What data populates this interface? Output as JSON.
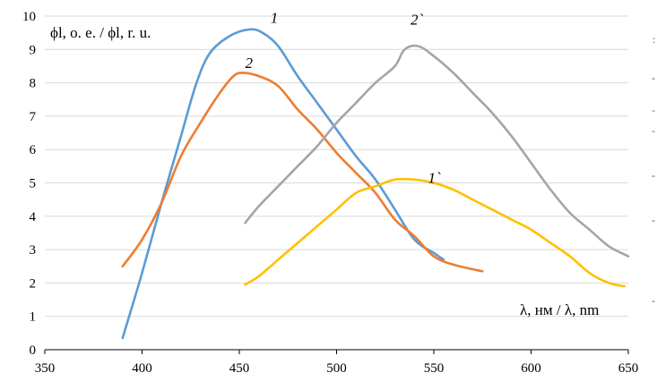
{
  "chart_data": {
    "type": "line",
    "xlabel": "λ, нм / λ, nm",
    "ylabel": "ϕl, o. e. / ϕl, r. u.",
    "xlim": [
      350,
      650
    ],
    "ylim": [
      0,
      10
    ],
    "x_ticks": [
      "350",
      "400",
      "450",
      "500",
      "550",
      "600",
      "650"
    ],
    "y_ticks": [
      "0",
      "1",
      "2",
      "3",
      "4",
      "5",
      "6",
      "7",
      "8",
      "9",
      "10"
    ],
    "grid": "horizontal",
    "series": [
      {
        "name": "1",
        "color": "#5b9bd5",
        "points": [
          [
            390,
            0.35
          ],
          [
            400,
            2.3
          ],
          [
            410,
            4.4
          ],
          [
            420,
            6.4
          ],
          [
            428,
            8.0
          ],
          [
            435,
            8.9
          ],
          [
            445,
            9.4
          ],
          [
            455,
            9.6
          ],
          [
            462,
            9.5
          ],
          [
            470,
            9.1
          ],
          [
            480,
            8.2
          ],
          [
            490,
            7.4
          ],
          [
            500,
            6.6
          ],
          [
            510,
            5.8
          ],
          [
            520,
            5.1
          ],
          [
            530,
            4.2
          ],
          [
            540,
            3.3
          ],
          [
            550,
            2.9
          ],
          [
            555,
            2.7
          ]
        ]
      },
      {
        "name": "2",
        "color": "#ed7d31",
        "points": [
          [
            390,
            2.5
          ],
          [
            400,
            3.3
          ],
          [
            410,
            4.4
          ],
          [
            420,
            5.8
          ],
          [
            430,
            6.8
          ],
          [
            440,
            7.7
          ],
          [
            447,
            8.2
          ],
          [
            452,
            8.3
          ],
          [
            460,
            8.2
          ],
          [
            470,
            7.9
          ],
          [
            480,
            7.2
          ],
          [
            490,
            6.6
          ],
          [
            500,
            5.9
          ],
          [
            510,
            5.3
          ],
          [
            520,
            4.7
          ],
          [
            530,
            3.9
          ],
          [
            540,
            3.4
          ],
          [
            550,
            2.8
          ],
          [
            560,
            2.55
          ],
          [
            575,
            2.35
          ]
        ]
      },
      {
        "name": "2`",
        "color": "#a5a5a5",
        "points": [
          [
            453,
            3.8
          ],
          [
            460,
            4.3
          ],
          [
            470,
            4.9
          ],
          [
            480,
            5.5
          ],
          [
            490,
            6.1
          ],
          [
            500,
            6.8
          ],
          [
            510,
            7.4
          ],
          [
            520,
            8.0
          ],
          [
            530,
            8.5
          ],
          [
            535,
            9.0
          ],
          [
            542,
            9.1
          ],
          [
            550,
            8.8
          ],
          [
            560,
            8.3
          ],
          [
            570,
            7.7
          ],
          [
            580,
            7.1
          ],
          [
            590,
            6.4
          ],
          [
            600,
            5.6
          ],
          [
            610,
            4.8
          ],
          [
            620,
            4.1
          ],
          [
            630,
            3.6
          ],
          [
            640,
            3.1
          ],
          [
            650,
            2.8
          ]
        ]
      },
      {
        "name": "1`",
        "color": "#ffc000",
        "points": [
          [
            453,
            1.95
          ],
          [
            460,
            2.2
          ],
          [
            470,
            2.7
          ],
          [
            480,
            3.2
          ],
          [
            490,
            3.7
          ],
          [
            500,
            4.2
          ],
          [
            510,
            4.7
          ],
          [
            520,
            4.9
          ],
          [
            530,
            5.1
          ],
          [
            540,
            5.1
          ],
          [
            550,
            5.0
          ],
          [
            560,
            4.8
          ],
          [
            570,
            4.5
          ],
          [
            580,
            4.2
          ],
          [
            590,
            3.9
          ],
          [
            600,
            3.6
          ],
          [
            610,
            3.2
          ],
          [
            620,
            2.8
          ],
          [
            630,
            2.3
          ],
          [
            640,
            2.0
          ],
          [
            648,
            1.9
          ]
        ]
      }
    ],
    "series_labels": [
      {
        "text": "1",
        "x": 466,
        "y": 9.8
      },
      {
        "text": "2",
        "x": 453,
        "y": 8.45
      },
      {
        "text": "2`",
        "x": 538,
        "y": 9.75
      },
      {
        "text": "1`",
        "x": 547,
        "y": 5.0
      }
    ]
  },
  "edge_marks": [
    ":",
    "-",
    "-",
    "-",
    "-",
    "-",
    "-"
  ]
}
